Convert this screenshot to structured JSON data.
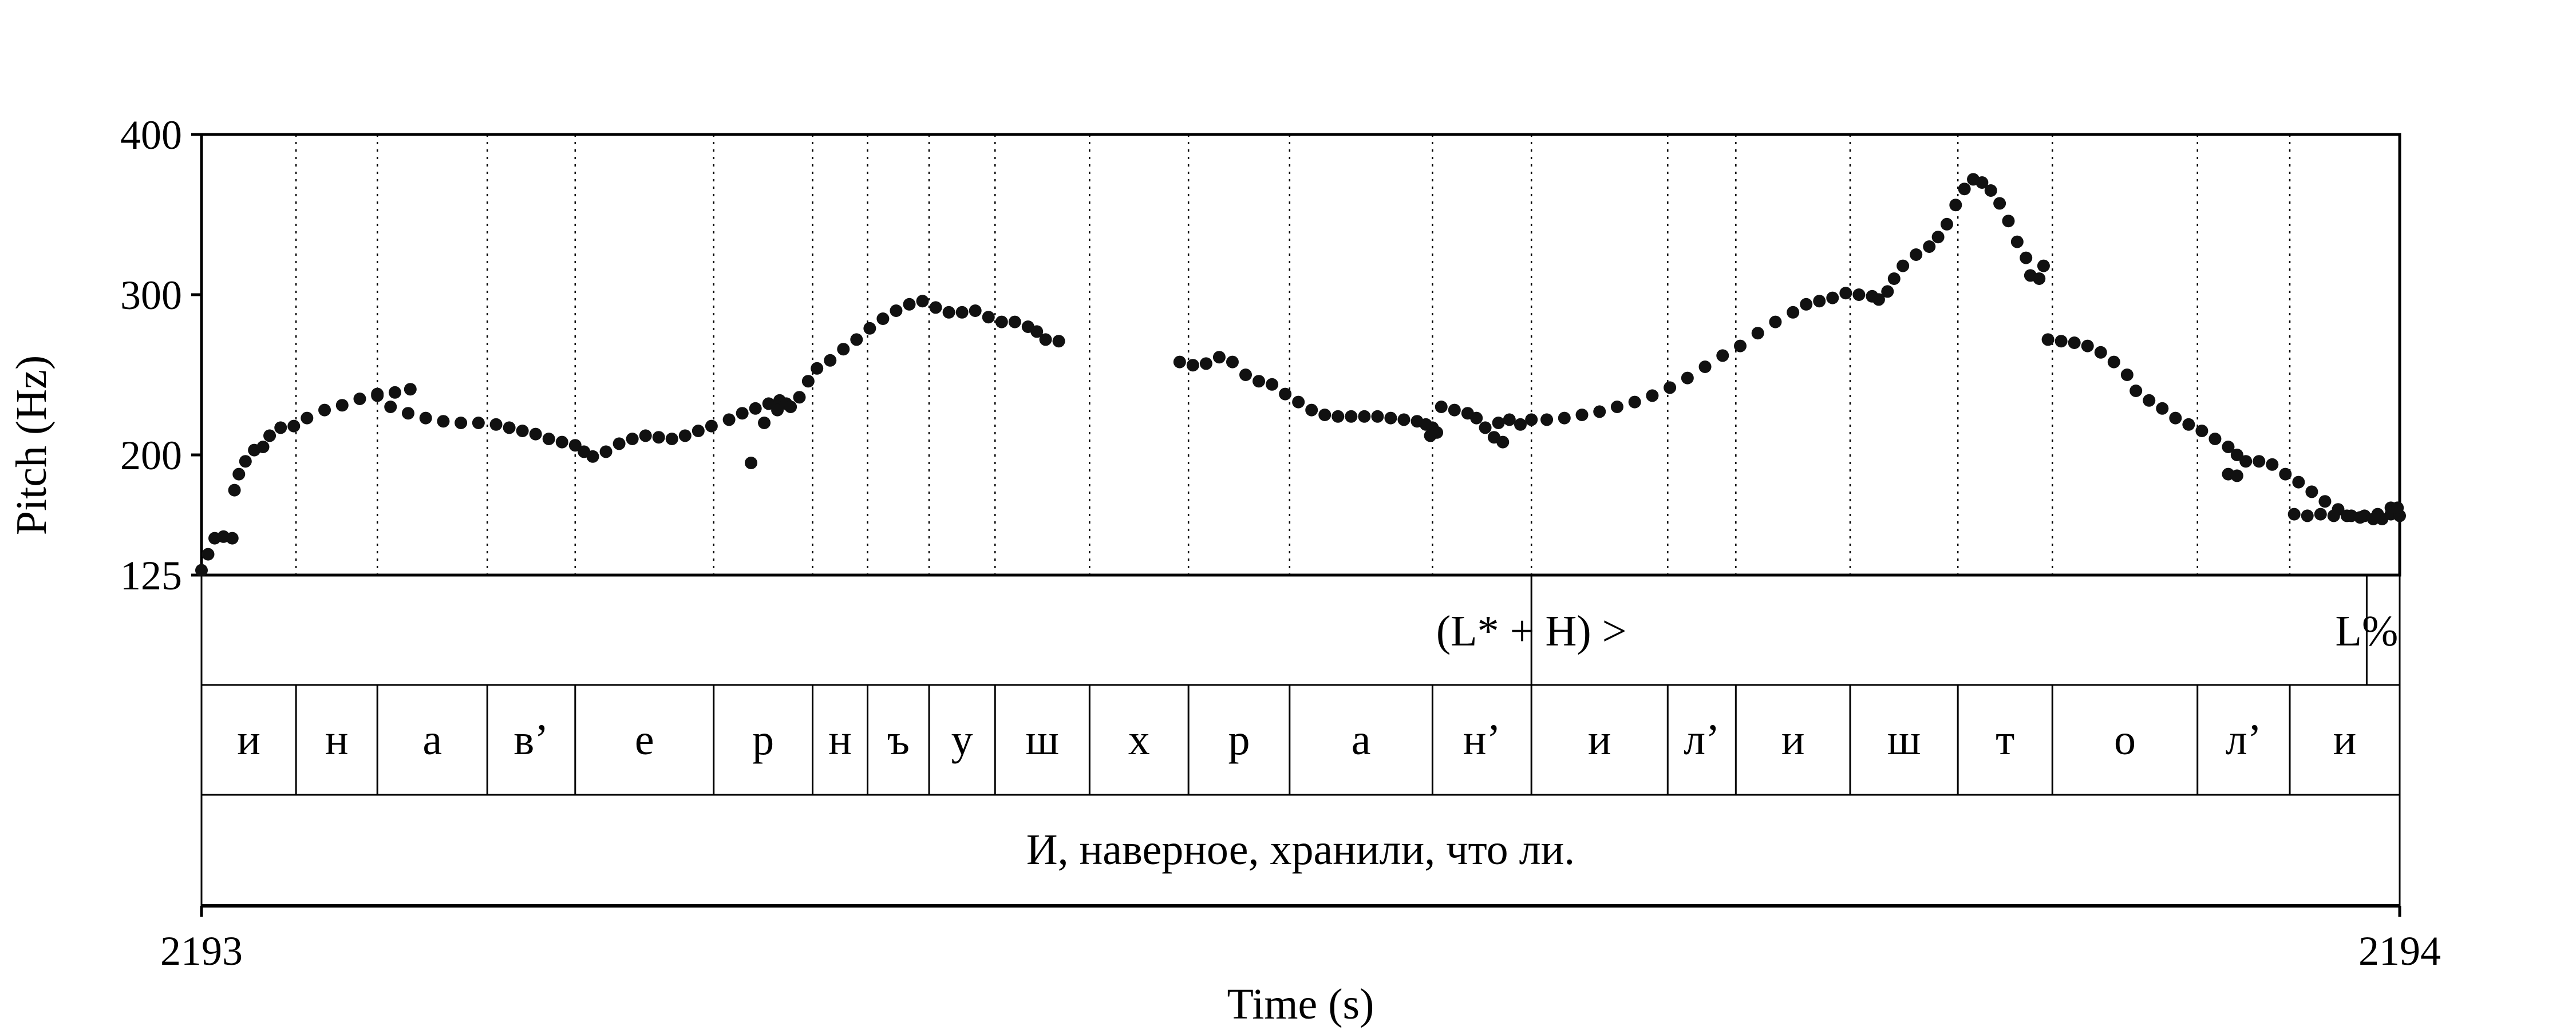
{
  "chart_data": {
    "type": "scatter",
    "ylabel": "Pitch (Hz)",
    "xlabel": "Time (s)",
    "y_ticks": [
      "400",
      "300",
      "200",
      "125"
    ],
    "y_tick_values": [
      400,
      300,
      200,
      125
    ],
    "x_ticks": [
      "2193",
      "2194"
    ],
    "xlim": [
      2193.0,
      2194.0
    ],
    "ylim": [
      125,
      400
    ],
    "grid": "dotted vertical lines at segment boundaries",
    "tones": [
      {
        "label": "(L* + H) >",
        "t": 2193.605
      },
      {
        "label": "L%",
        "t": 2193.985
      }
    ],
    "tone_marks": [
      2193.605,
      2193.985
    ],
    "segments": [
      {
        "label": "и",
        "start": 2193.0,
        "end": 2193.043
      },
      {
        "label": "н",
        "start": 2193.043,
        "end": 2193.08
      },
      {
        "label": "а",
        "start": 2193.08,
        "end": 2193.13
      },
      {
        "label": "в’",
        "start": 2193.13,
        "end": 2193.17
      },
      {
        "label": "е",
        "start": 2193.17,
        "end": 2193.233
      },
      {
        "label": "р",
        "start": 2193.233,
        "end": 2193.278
      },
      {
        "label": "н",
        "start": 2193.278,
        "end": 2193.303
      },
      {
        "label": "ъ",
        "start": 2193.303,
        "end": 2193.331
      },
      {
        "label": "у",
        "start": 2193.331,
        "end": 2193.361
      },
      {
        "label": "ш",
        "start": 2193.361,
        "end": 2193.404
      },
      {
        "label": "х",
        "start": 2193.404,
        "end": 2193.449
      },
      {
        "label": "р",
        "start": 2193.449,
        "end": 2193.495
      },
      {
        "label": "а",
        "start": 2193.495,
        "end": 2193.56
      },
      {
        "label": "н’",
        "start": 2193.56,
        "end": 2193.605
      },
      {
        "label": "и",
        "start": 2193.605,
        "end": 2193.667
      },
      {
        "label": "л’",
        "start": 2193.667,
        "end": 2193.698
      },
      {
        "label": "и",
        "start": 2193.698,
        "end": 2193.75
      },
      {
        "label": "ш",
        "start": 2193.75,
        "end": 2193.799
      },
      {
        "label": "т",
        "start": 2193.799,
        "end": 2193.842
      },
      {
        "label": "о",
        "start": 2193.842,
        "end": 2193.908
      },
      {
        "label": "л’",
        "start": 2193.908,
        "end": 2193.95
      },
      {
        "label": "и",
        "start": 2193.95,
        "end": 2194.0
      }
    ],
    "sentence": "И, наверное, хранили, что ли.",
    "series": [
      {
        "points": [
          [
            2193.0,
            128
          ],
          [
            2193.003,
            138
          ],
          [
            2193.006,
            148
          ],
          [
            2193.01,
            149
          ],
          [
            2193.014,
            148
          ],
          [
            2193.015,
            178
          ],
          [
            2193.017,
            188
          ],
          [
            2193.02,
            196
          ],
          [
            2193.024,
            203
          ],
          [
            2193.028,
            205
          ],
          [
            2193.031,
            212
          ],
          [
            2193.036,
            217
          ],
          [
            2193.042,
            218
          ],
          [
            2193.048,
            223
          ],
          [
            2193.056,
            228
          ],
          [
            2193.064,
            231
          ],
          [
            2193.072,
            235
          ],
          [
            2193.08,
            237
          ],
          [
            2193.088,
            239
          ],
          [
            2193.095,
            241
          ],
          [
            2193.08,
            238
          ],
          [
            2193.086,
            230
          ],
          [
            2193.094,
            226
          ],
          [
            2193.102,
            223
          ],
          [
            2193.11,
            221
          ],
          [
            2193.118,
            220
          ],
          [
            2193.126,
            220
          ],
          [
            2193.134,
            219
          ],
          [
            2193.14,
            217
          ],
          [
            2193.146,
            215
          ],
          [
            2193.152,
            213
          ],
          [
            2193.158,
            210
          ],
          [
            2193.164,
            208
          ],
          [
            2193.17,
            206
          ],
          [
            2193.174,
            202
          ],
          [
            2193.178,
            199
          ],
          [
            2193.184,
            202
          ],
          [
            2193.19,
            207
          ],
          [
            2193.196,
            210
          ],
          [
            2193.202,
            212
          ],
          [
            2193.208,
            211
          ],
          [
            2193.214,
            210
          ],
          [
            2193.22,
            212
          ],
          [
            2193.226,
            215
          ],
          [
            2193.232,
            218
          ],
          [
            2193.24,
            222
          ],
          [
            2193.246,
            226
          ],
          [
            2193.252,
            229
          ],
          [
            2193.258,
            232
          ],
          [
            2193.263,
            234
          ],
          [
            2193.266,
            232
          ],
          [
            2193.25,
            195
          ],
          [
            2193.256,
            220
          ],
          [
            2193.262,
            228
          ],
          [
            2193.268,
            230
          ],
          [
            2193.272,
            236
          ],
          [
            2193.276,
            246
          ],
          [
            2193.28,
            254
          ],
          [
            2193.286,
            259
          ],
          [
            2193.292,
            266
          ],
          [
            2193.298,
            272
          ],
          [
            2193.304,
            279
          ],
          [
            2193.31,
            285
          ],
          [
            2193.316,
            290
          ],
          [
            2193.322,
            294
          ],
          [
            2193.328,
            296
          ],
          [
            2193.334,
            292
          ],
          [
            2193.34,
            289
          ],
          [
            2193.346,
            289
          ],
          [
            2193.352,
            290
          ],
          [
            2193.358,
            286
          ],
          [
            2193.364,
            283
          ],
          [
            2193.37,
            283
          ],
          [
            2193.376,
            280
          ],
          [
            2193.38,
            277
          ],
          [
            2193.384,
            272
          ],
          [
            2193.39,
            271
          ],
          [
            2193.445,
            258
          ],
          [
            2193.451,
            256
          ],
          [
            2193.457,
            257
          ],
          [
            2193.463,
            261
          ],
          [
            2193.469,
            258
          ],
          [
            2193.475,
            250
          ],
          [
            2193.481,
            246
          ],
          [
            2193.487,
            244
          ],
          [
            2193.493,
            238
          ],
          [
            2193.499,
            233
          ],
          [
            2193.505,
            228
          ],
          [
            2193.511,
            225
          ],
          [
            2193.517,
            224
          ],
          [
            2193.523,
            224
          ],
          [
            2193.529,
            224
          ],
          [
            2193.535,
            224
          ],
          [
            2193.541,
            223
          ],
          [
            2193.547,
            222
          ],
          [
            2193.553,
            221
          ],
          [
            2193.557,
            219
          ],
          [
            2193.56,
            217
          ],
          [
            2193.562,
            214
          ],
          [
            2193.559,
            212
          ],
          [
            2193.564,
            230
          ],
          [
            2193.57,
            228
          ],
          [
            2193.576,
            226
          ],
          [
            2193.58,
            223
          ],
          [
            2193.584,
            217
          ],
          [
            2193.588,
            211
          ],
          [
            2193.592,
            208
          ],
          [
            2193.59,
            220
          ],
          [
            2193.595,
            222
          ],
          [
            2193.6,
            219
          ],
          [
            2193.605,
            222
          ],
          [
            2193.612,
            222
          ],
          [
            2193.62,
            223
          ],
          [
            2193.628,
            225
          ],
          [
            2193.636,
            227
          ],
          [
            2193.644,
            230
          ],
          [
            2193.652,
            233
          ],
          [
            2193.66,
            237
          ],
          [
            2193.668,
            242
          ],
          [
            2193.676,
            248
          ],
          [
            2193.684,
            255
          ],
          [
            2193.692,
            262
          ],
          [
            2193.7,
            268
          ],
          [
            2193.708,
            276
          ],
          [
            2193.716,
            283
          ],
          [
            2193.724,
            289
          ],
          [
            2193.73,
            294
          ],
          [
            2193.736,
            296
          ],
          [
            2193.742,
            298
          ],
          [
            2193.748,
            301
          ],
          [
            2193.754,
            300
          ],
          [
            2193.76,
            299
          ],
          [
            2193.763,
            297
          ],
          [
            2193.767,
            302
          ],
          [
            2193.77,
            310
          ],
          [
            2193.774,
            318
          ],
          [
            2193.78,
            325
          ],
          [
            2193.786,
            330
          ],
          [
            2193.79,
            336
          ],
          [
            2193.794,
            344
          ],
          [
            2193.798,
            356
          ],
          [
            2193.802,
            366
          ],
          [
            2193.806,
            372
          ],
          [
            2193.81,
            370
          ],
          [
            2193.814,
            365
          ],
          [
            2193.818,
            357
          ],
          [
            2193.822,
            346
          ],
          [
            2193.826,
            333
          ],
          [
            2193.83,
            323
          ],
          [
            2193.832,
            312
          ],
          [
            2193.836,
            310
          ],
          [
            2193.838,
            318
          ],
          [
            2193.84,
            272
          ],
          [
            2193.846,
            271
          ],
          [
            2193.852,
            270
          ],
          [
            2193.858,
            268
          ],
          [
            2193.864,
            264
          ],
          [
            2193.87,
            258
          ],
          [
            2193.876,
            250
          ],
          [
            2193.88,
            240
          ],
          [
            2193.886,
            234
          ],
          [
            2193.892,
            229
          ],
          [
            2193.898,
            223
          ],
          [
            2193.904,
            219
          ],
          [
            2193.91,
            215
          ],
          [
            2193.916,
            210
          ],
          [
            2193.922,
            205
          ],
          [
            2193.926,
            200
          ],
          [
            2193.922,
            188
          ],
          [
            2193.926,
            187
          ],
          [
            2193.93,
            196
          ],
          [
            2193.936,
            196
          ],
          [
            2193.942,
            194
          ],
          [
            2193.948,
            188
          ],
          [
            2193.954,
            183
          ],
          [
            2193.96,
            177
          ],
          [
            2193.966,
            171
          ],
          [
            2193.972,
            166
          ],
          [
            2193.978,
            162
          ],
          [
            2193.984,
            162
          ],
          [
            2193.99,
            163
          ],
          [
            2193.996,
            163
          ],
          [
            2194.0,
            162
          ],
          [
            2193.952,
            163
          ],
          [
            2193.958,
            162
          ],
          [
            2193.964,
            163
          ],
          [
            2193.97,
            162
          ],
          [
            2193.976,
            162
          ],
          [
            2193.982,
            161
          ],
          [
            2193.988,
            160
          ],
          [
            2193.992,
            160
          ],
          [
            2193.996,
            167
          ],
          [
            2193.999,
            167
          ]
        ]
      }
    ]
  }
}
